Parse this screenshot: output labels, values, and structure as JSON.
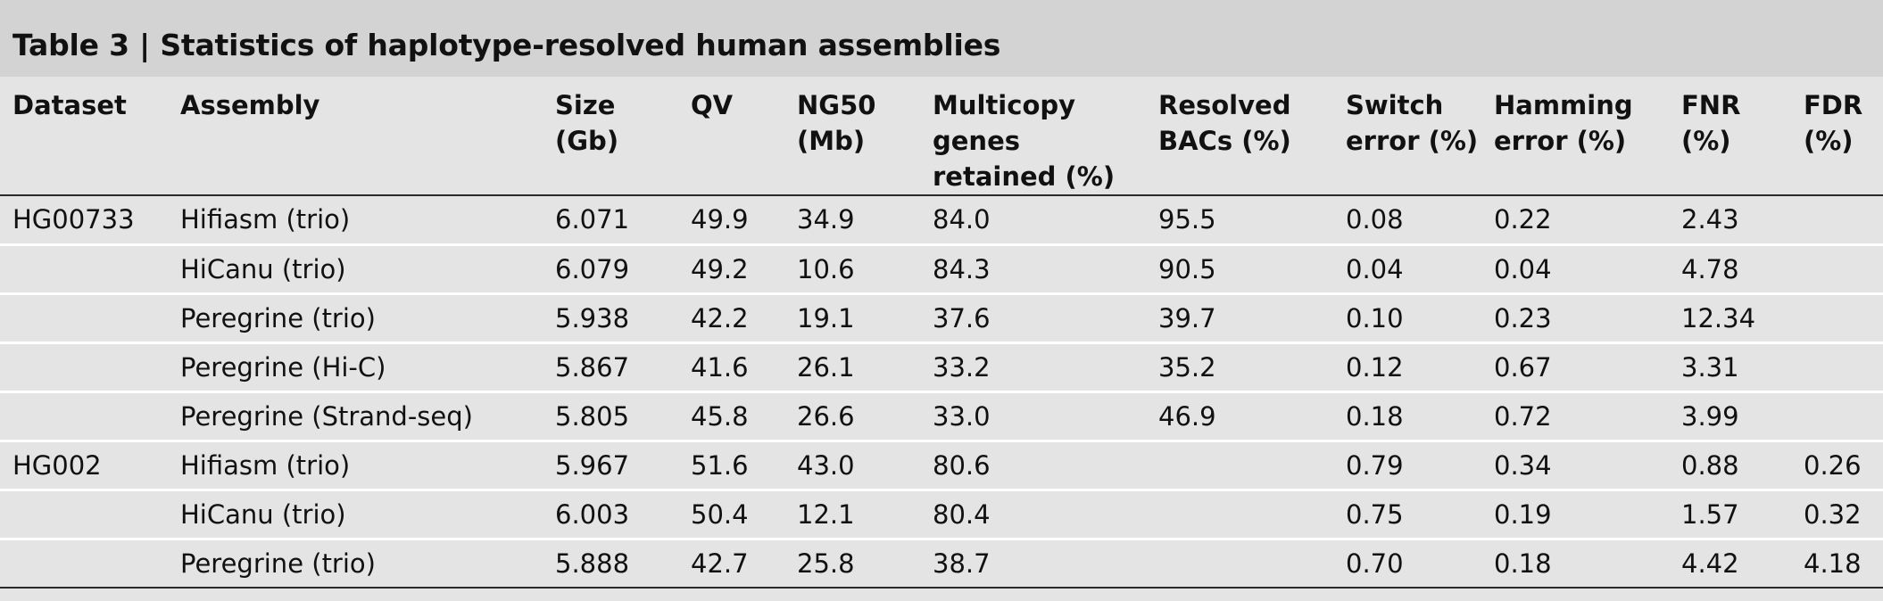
{
  "table": {
    "title": "Table 3 | Statistics of haplotype-resolved human assemblies",
    "headers": [
      "Dataset",
      "Assembly",
      "Size (Gb)",
      "QV",
      "NG50 (Mb)",
      "Multicopy genes retained (%)",
      "Resolved BACs (%)",
      "Switch error (%)",
      "Hamming error (%)",
      "FNR (%)",
      "FDR (%)"
    ],
    "rows": [
      [
        "HG00733",
        "Hifiasm (trio)",
        "6.071",
        "49.9",
        "34.9",
        "84.0",
        "95.5",
        "0.08",
        "0.22",
        "2.43",
        ""
      ],
      [
        "",
        "HiCanu (trio)",
        "6.079",
        "49.2",
        "10.6",
        "84.3",
        "90.5",
        "0.04",
        "0.04",
        "4.78",
        ""
      ],
      [
        "",
        "Peregrine (trio)",
        "5.938",
        "42.2",
        "19.1",
        "37.6",
        "39.7",
        "0.10",
        "0.23",
        "12.34",
        ""
      ],
      [
        "",
        "Peregrine (Hi-C)",
        "5.867",
        "41.6",
        "26.1",
        "33.2",
        "35.2",
        "0.12",
        "0.67",
        "3.31",
        ""
      ],
      [
        "",
        "Peregrine (Strand-seq)",
        "5.805",
        "45.8",
        "26.6",
        "33.0",
        "46.9",
        "0.18",
        "0.72",
        "3.99",
        ""
      ],
      [
        "HG002",
        "Hifiasm (trio)",
        "5.967",
        "51.6",
        "43.0",
        "80.6",
        "",
        "0.79",
        "0.34",
        "0.88",
        "0.26"
      ],
      [
        "",
        "HiCanu (trio)",
        "6.003",
        "50.4",
        "12.1",
        "80.4",
        "",
        "0.75",
        "0.19",
        "1.57",
        "0.32"
      ],
      [
        "",
        "Peregrine (trio)",
        "5.888",
        "42.7",
        "25.8",
        "38.7",
        "",
        "0.70",
        "0.18",
        "4.42",
        "4.18"
      ]
    ]
  }
}
